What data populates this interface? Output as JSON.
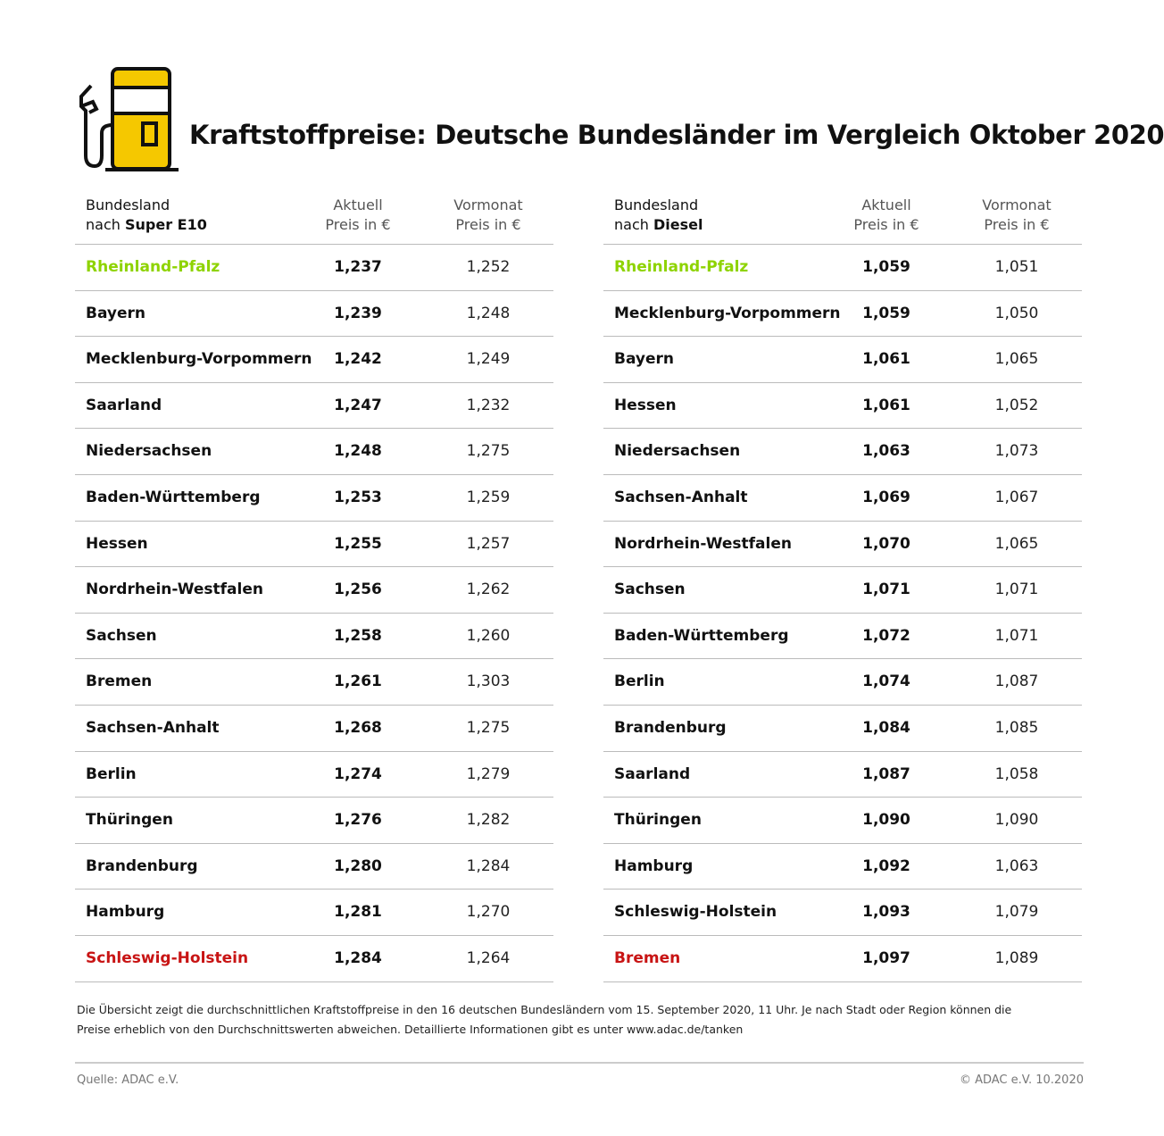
{
  "title": "Kraftstoffpreise: Deutsche Bundesländer im Vergleich Oktober 2020",
  "colors": {
    "icon_yellow": "#f5c800",
    "best": "#8ed300",
    "worst": "#c81414"
  },
  "tables": [
    {
      "header": {
        "line1": "Bundesland",
        "line2_prefix": "nach ",
        "line2_bold": "Super E10",
        "aktuell": [
          "Aktuell",
          "Preis in €"
        ],
        "vormonat": [
          "Vormonat",
          "Preis in €"
        ]
      },
      "rows": [
        [
          "Rheinland-Pfalz",
          "1,237",
          "1,252"
        ],
        [
          "Bayern",
          "1,239",
          "1,248"
        ],
        [
          "Mecklenburg-Vorpommern",
          "1,242",
          "1,249"
        ],
        [
          "Saarland",
          "1,247",
          "1,232"
        ],
        [
          "Niedersachsen",
          "1,248",
          "1,275"
        ],
        [
          "Baden-Württemberg",
          "1,253",
          "1,259"
        ],
        [
          "Hessen",
          "1,255",
          "1,257"
        ],
        [
          "Nordrhein-Westfalen",
          "1,256",
          "1,262"
        ],
        [
          "Sachsen",
          "1,258",
          "1,260"
        ],
        [
          "Bremen",
          "1,261",
          "1,303"
        ],
        [
          "Sachsen-Anhalt",
          "1,268",
          "1,275"
        ],
        [
          "Berlin",
          "1,274",
          "1,279"
        ],
        [
          "Thüringen",
          "1,276",
          "1,282"
        ],
        [
          "Brandenburg",
          "1,280",
          "1,284"
        ],
        [
          "Hamburg",
          "1,281",
          "1,270"
        ],
        [
          "Schleswig-Holstein",
          "1,284",
          "1,264"
        ]
      ]
    },
    {
      "header": {
        "line1": "Bundesland",
        "line2_prefix": "nach ",
        "line2_bold": "Diesel",
        "aktuell": [
          "Aktuell",
          "Preis in €"
        ],
        "vormonat": [
          "Vormonat",
          "Preis in €"
        ]
      },
      "rows": [
        [
          "Rheinland-Pfalz",
          "1,059",
          "1,051"
        ],
        [
          "Mecklenburg-Vorpommern",
          "1,059",
          "1,050"
        ],
        [
          "Bayern",
          "1,061",
          "1,065"
        ],
        [
          "Hessen",
          "1,061",
          "1,052"
        ],
        [
          "Niedersachsen",
          "1,063",
          "1,073"
        ],
        [
          "Sachsen-Anhalt",
          "1,069",
          "1,067"
        ],
        [
          "Nordrhein-Westfalen",
          "1,070",
          "1,065"
        ],
        [
          "Sachsen",
          "1,071",
          "1,071"
        ],
        [
          "Baden-Württemberg",
          "1,072",
          "1,071"
        ],
        [
          "Berlin",
          "1,074",
          "1,087"
        ],
        [
          "Brandenburg",
          "1,084",
          "1,085"
        ],
        [
          "Saarland",
          "1,087",
          "1,058"
        ],
        [
          "Thüringen",
          "1,090",
          "1,090"
        ],
        [
          "Hamburg",
          "1,092",
          "1,063"
        ],
        [
          "Schleswig-Holstein",
          "1,093",
          "1,079"
        ],
        [
          "Bremen",
          "1,097",
          "1,089"
        ]
      ]
    }
  ],
  "note": [
    "Die Übersicht zeigt die durchschnittlichen Kraftstoffpreise in den 16 deutschen Bundesländern vom 15. September 2020, 11 Uhr.  Je nach Stadt oder Region können die",
    "Preise erheblich von den Durchschnittswerten abweichen. Detaillierte Informationen gibt es unter www.adac.de/tanken"
  ],
  "source": "Quelle: ADAC e.V.",
  "copyright": "© ADAC e.V. 10.2020"
}
